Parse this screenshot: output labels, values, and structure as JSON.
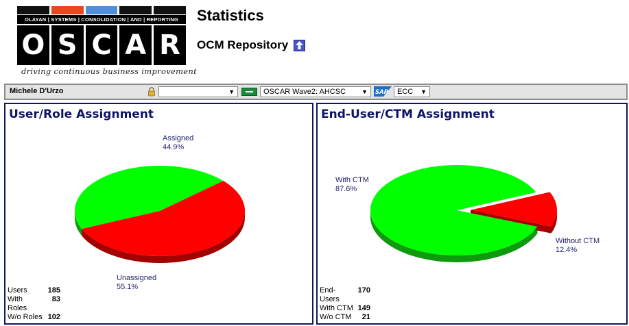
{
  "logo": {
    "stripe_colors": [
      "#111111",
      "#e8481f",
      "#4f90d8",
      "#111111",
      "#111111"
    ],
    "subtitle": "OLAYAN | SYSTEMS | CONSOLIDATION | AND | REPORTING",
    "letters": [
      "O",
      "S",
      "C",
      "A",
      "R"
    ],
    "tagline": "driving continuous business improvement"
  },
  "header": {
    "title": "Statistics",
    "repository": "OCM Repository",
    "up_icon": "up-arrow-icon"
  },
  "toolbar": {
    "user_name": "Michele D'Urzo",
    "lock_icon": "lock-icon",
    "select1_value": "",
    "flag_icon": "flag-icon",
    "select2_value": "OSCAR Wave2: AHCSC",
    "sap_icon": "sap-icon",
    "select3_value": "ECC"
  },
  "left_panel": {
    "title": "User/Role Assignment",
    "stats": [
      {
        "label": "Users",
        "value": "185"
      },
      {
        "label": "With Roles",
        "value": "83"
      },
      {
        "label": "W/o Roles",
        "value": "102"
      }
    ]
  },
  "right_panel": {
    "title": "End-User/CTM Assignment",
    "stats": [
      {
        "label": "End-Users",
        "value": "170"
      },
      {
        "label": "With CTM",
        "value": "149"
      },
      {
        "label": "W/o CTM",
        "value": "21"
      }
    ]
  },
  "colors": {
    "green_top": "#00ff00",
    "green_side": "#0d9a0d",
    "red_top": "#ff0000",
    "red_side": "#a30000",
    "panel_border": "#0f1a58",
    "title_color": "#0d1466"
  },
  "chart_data": [
    {
      "type": "pie",
      "title": "User/Role Assignment",
      "categories": [
        "Assigned",
        "Unassigned"
      ],
      "values": [
        44.9,
        55.1
      ],
      "labels": [
        "44.9%",
        "55.1%"
      ]
    },
    {
      "type": "pie",
      "title": "End-User/CTM Assignment",
      "categories": [
        "With CTM",
        "Without CTM"
      ],
      "values": [
        87.6,
        12.4
      ],
      "labels": [
        "87.6%",
        "12.4%"
      ],
      "exploded": "Without CTM"
    }
  ]
}
